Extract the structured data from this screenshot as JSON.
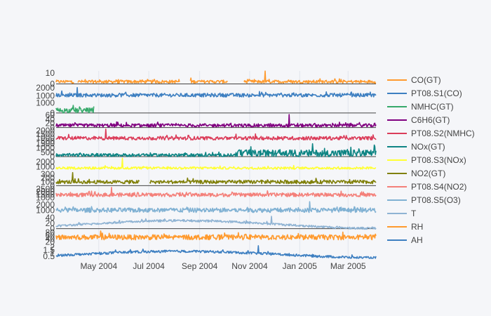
{
  "chart_data": {
    "type": "line",
    "title": "",
    "x_range": [
      "2004-03-10",
      "2005-04-04"
    ],
    "x_ticks": [
      {
        "date": "2004-05-01",
        "label": "May 2004"
      },
      {
        "date": "2004-07-01",
        "label": "Jul 2004"
      },
      {
        "date": "2004-09-01",
        "label": "Sep 2004"
      },
      {
        "date": "2004-11-01",
        "label": "Nov 2004"
      },
      {
        "date": "2005-01-01",
        "label": "Jan 2005"
      },
      {
        "date": "2005-03-01",
        "label": "Mar 2005"
      }
    ],
    "legend_position": "right",
    "gridlines": "x only",
    "series": [
      {
        "name": "CO(GT)",
        "color": "#FF9A2E",
        "yrange": [
          0,
          12
        ],
        "yticks": [
          "0",
          "10"
        ],
        "base": 2.1,
        "amp": 1.4,
        "max": 11.9,
        "gaps": [
          [
            "2004-04-01",
            "2004-04-05"
          ],
          [
            "2004-08-08",
            "2004-08-20"
          ],
          [
            "2004-10-05",
            "2004-10-25"
          ]
        ]
      },
      {
        "name": "PT08.S1(CO)",
        "color": "#3D7FC1",
        "yrange": [
          700,
          2300
        ],
        "yticks": [
          "1000",
          "2000"
        ],
        "base": 1100,
        "amp": 220,
        "max": 2040,
        "gaps": []
      },
      {
        "name": "NMHC(GT)",
        "color": "#36A96A",
        "yrange": [
          0,
          1300
        ],
        "yticks": [
          "0",
          "1000"
        ],
        "base": 250,
        "amp": 260,
        "max": 1190,
        "end": "2004-04-25",
        "gaps": []
      },
      {
        "name": "C6H6(GT)",
        "color": "#800080",
        "yrange": [
          0,
          63
        ],
        "yticks": [
          "0",
          "20",
          "40",
          "60"
        ],
        "base": 10,
        "amp": 8,
        "max": 63,
        "gaps": []
      },
      {
        "name": "PT08.S2(NMHC)",
        "color": "#DB3D5A",
        "yrange": [
          380,
          2200
        ],
        "yticks": [
          "500",
          "1000",
          "1500",
          "2000"
        ],
        "base": 920,
        "amp": 250,
        "max": 2210,
        "gaps": []
      },
      {
        "name": "NOx(GT)",
        "color": "#0F8584",
        "yrange": [
          0,
          1500
        ],
        "yticks": [
          "0",
          "500",
          "1000",
          "1500"
        ],
        "base": 170,
        "amp": 180,
        "max": 1480,
        "ramp": "2004-10-15",
        "gaps": []
      },
      {
        "name": "PT08.S3(NOx)",
        "color": "#FFFF33",
        "yrange": [
          200,
          2700
        ],
        "yticks": [
          "1000",
          "2000"
        ],
        "base": 780,
        "amp": 220,
        "max": 2680,
        "gaps": []
      },
      {
        "name": "NO2(GT)",
        "color": "#80800A",
        "yrange": [
          0,
          340
        ],
        "yticks": [
          "0",
          "100",
          "200",
          "300"
        ],
        "base": 95,
        "amp": 45,
        "max": 340,
        "gaps": [
          [
            "2004-06-20",
            "2004-07-02"
          ]
        ]
      },
      {
        "name": "PT08.S4(NO2)",
        "color": "#F4807A",
        "yrange": [
          550,
          2800
        ],
        "yticks": [
          "1000",
          "1500",
          "2000",
          "2500"
        ],
        "base": 1480,
        "amp": 320,
        "max": 2770,
        "gaps": []
      },
      {
        "name": "PT08.S5(O3)",
        "color": "#80B1D3",
        "yrange": [
          200,
          2500
        ],
        "yticks": [
          "1000",
          "2000"
        ],
        "base": 1000,
        "amp": 400,
        "max": 2520,
        "gaps": []
      },
      {
        "name": "T",
        "color": "#8FB3D3",
        "yrange": [
          -2,
          45
        ],
        "yticks": [
          "0",
          "20",
          "40"
        ],
        "base": 18,
        "amp": 4,
        "max": 44.6,
        "seasonal": "temperature",
        "gaps": []
      },
      {
        "name": "RH",
        "color": "#FF9A2E",
        "yrange": [
          8,
          90
        ],
        "yticks": [
          "20",
          "40",
          "60",
          "80"
        ],
        "base": 49,
        "amp": 16,
        "max": 88.7,
        "gaps": []
      },
      {
        "name": "AH",
        "color": "#3D7FC1",
        "yrange": [
          0.15,
          2.3
        ],
        "yticks": [
          "0.5",
          "1",
          "1.5",
          "2"
        ],
        "base": 1.0,
        "amp": 0.2,
        "max": 2.23,
        "seasonal": "humidity",
        "gaps": []
      }
    ]
  }
}
